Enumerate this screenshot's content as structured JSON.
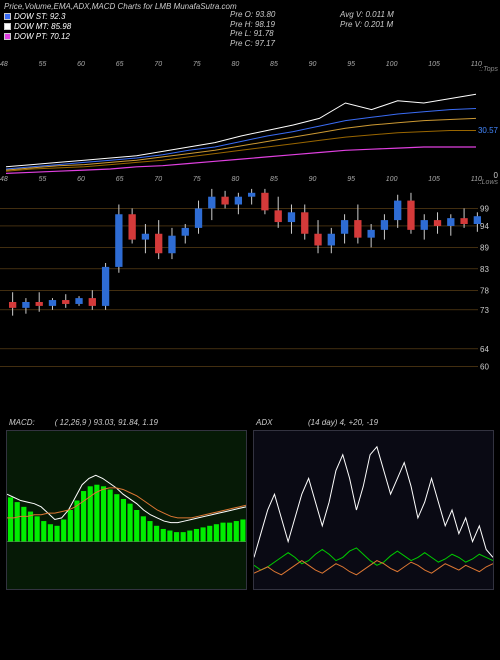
{
  "title": "Price,Volume,EMA,ADX,MACD Charts for LMB MunafaSutra.com",
  "legend": [
    {
      "label": "DOW ST: 92.3",
      "color": "#3a6cf4"
    },
    {
      "label": "DOW MT: 85.98",
      "color": "#ffffff"
    },
    {
      "label": "DOW PT: 70.12",
      "color": "#e040e0"
    }
  ],
  "stats_col1": [
    {
      "k": "Pre",
      "v": "O: 93.80"
    },
    {
      "k": "Pre",
      "v": "H: 98.19"
    },
    {
      "k": "Pre",
      "v": "L: 91.78"
    },
    {
      "k": "Pre",
      "v": "C: 97.17"
    }
  ],
  "stats_col2": [
    {
      "k": "Avg V:",
      "v": "0.011 M"
    },
    {
      "k": "Pre  V:",
      "v": "0.201 M"
    }
  ],
  "panel_top": {
    "bg": "#000000",
    "corner_top": "::Tops",
    "corner_bot": "::Lows",
    "price_label": {
      "text": "30.57",
      "y": 0.55
    },
    "zero_label": {
      "text": "0",
      "y": 0.92
    },
    "xlabels": [
      "48",
      "55",
      "60",
      "65",
      "70",
      "75",
      "80",
      "85",
      "90",
      "95",
      "100",
      "105",
      "110"
    ],
    "lines": [
      {
        "color": "#ffffff",
        "w": 1,
        "pts": [
          0.88,
          0.86,
          0.84,
          0.82,
          0.8,
          0.78,
          0.74,
          0.7,
          0.66,
          0.6,
          0.55,
          0.5,
          0.44,
          0.3,
          0.36,
          0.28,
          0.3,
          0.26,
          0.22
        ]
      },
      {
        "color": "#3a6cf4",
        "w": 1,
        "pts": [
          0.9,
          0.88,
          0.86,
          0.84,
          0.82,
          0.8,
          0.77,
          0.73,
          0.7,
          0.65,
          0.6,
          0.56,
          0.51,
          0.46,
          0.43,
          0.4,
          0.38,
          0.36,
          0.35
        ]
      },
      {
        "color": "#cc9933",
        "w": 1,
        "pts": [
          0.91,
          0.89,
          0.87,
          0.86,
          0.84,
          0.82,
          0.79,
          0.76,
          0.73,
          0.69,
          0.65,
          0.61,
          0.57,
          0.53,
          0.5,
          0.48,
          0.46,
          0.45,
          0.44
        ]
      },
      {
        "color": "#996600",
        "w": 1,
        "pts": [
          0.92,
          0.9,
          0.89,
          0.88,
          0.86,
          0.84,
          0.82,
          0.79,
          0.76,
          0.73,
          0.7,
          0.67,
          0.64,
          0.61,
          0.59,
          0.57,
          0.56,
          0.55,
          0.55
        ]
      },
      {
        "color": "#e040e0",
        "w": 1.2,
        "pts": [
          0.94,
          0.93,
          0.92,
          0.91,
          0.9,
          0.88,
          0.87,
          0.85,
          0.83,
          0.81,
          0.79,
          0.77,
          0.75,
          0.73,
          0.72,
          0.71,
          0.7,
          0.7,
          0.7
        ]
      }
    ]
  },
  "panel_mid": {
    "ylabels": [
      {
        "v": "99",
        "y": 0.12
      },
      {
        "v": "94",
        "y": 0.21
      },
      {
        "v": "89",
        "y": 0.32
      },
      {
        "v": "83",
        "y": 0.43
      },
      {
        "v": "78",
        "y": 0.54
      },
      {
        "v": "73",
        "y": 0.64
      },
      {
        "v": "64",
        "y": 0.84
      },
      {
        "v": "60",
        "y": 0.93
      }
    ],
    "gridcolor": "#6a4a1a",
    "xlabels": [
      "48",
      "55",
      "60",
      "65",
      "70",
      "75",
      "80",
      "85",
      "90",
      "95",
      "100",
      "105",
      "110"
    ],
    "candles": [
      {
        "o": 0.6,
        "h": 0.55,
        "l": 0.67,
        "c": 0.63,
        "up": false
      },
      {
        "o": 0.63,
        "h": 0.58,
        "l": 0.66,
        "c": 0.6,
        "up": true
      },
      {
        "o": 0.6,
        "h": 0.55,
        "l": 0.65,
        "c": 0.62,
        "up": false
      },
      {
        "o": 0.62,
        "h": 0.58,
        "l": 0.64,
        "c": 0.59,
        "up": true
      },
      {
        "o": 0.59,
        "h": 0.56,
        "l": 0.63,
        "c": 0.61,
        "up": false
      },
      {
        "o": 0.61,
        "h": 0.57,
        "l": 0.62,
        "c": 0.58,
        "up": true
      },
      {
        "o": 0.58,
        "h": 0.54,
        "l": 0.64,
        "c": 0.62,
        "up": false
      },
      {
        "o": 0.62,
        "h": 0.4,
        "l": 0.64,
        "c": 0.42,
        "up": true
      },
      {
        "o": 0.42,
        "h": 0.1,
        "l": 0.45,
        "c": 0.15,
        "up": true
      },
      {
        "o": 0.15,
        "h": 0.12,
        "l": 0.3,
        "c": 0.28,
        "up": false
      },
      {
        "o": 0.28,
        "h": 0.2,
        "l": 0.35,
        "c": 0.25,
        "up": true
      },
      {
        "o": 0.25,
        "h": 0.18,
        "l": 0.38,
        "c": 0.35,
        "up": false
      },
      {
        "o": 0.35,
        "h": 0.22,
        "l": 0.38,
        "c": 0.26,
        "up": true
      },
      {
        "o": 0.26,
        "h": 0.2,
        "l": 0.3,
        "c": 0.22,
        "up": true
      },
      {
        "o": 0.22,
        "h": 0.08,
        "l": 0.25,
        "c": 0.12,
        "up": true
      },
      {
        "o": 0.12,
        "h": 0.02,
        "l": 0.18,
        "c": 0.06,
        "up": true
      },
      {
        "o": 0.06,
        "h": 0.03,
        "l": 0.12,
        "c": 0.1,
        "up": false
      },
      {
        "o": 0.1,
        "h": 0.04,
        "l": 0.15,
        "c": 0.06,
        "up": true
      },
      {
        "o": 0.06,
        "h": 0.02,
        "l": 0.1,
        "c": 0.04,
        "up": true
      },
      {
        "o": 0.04,
        "h": 0.02,
        "l": 0.15,
        "c": 0.13,
        "up": false
      },
      {
        "o": 0.13,
        "h": 0.06,
        "l": 0.22,
        "c": 0.19,
        "up": false
      },
      {
        "o": 0.19,
        "h": 0.1,
        "l": 0.25,
        "c": 0.14,
        "up": true
      },
      {
        "o": 0.14,
        "h": 0.1,
        "l": 0.28,
        "c": 0.25,
        "up": false
      },
      {
        "o": 0.25,
        "h": 0.18,
        "l": 0.35,
        "c": 0.31,
        "up": false
      },
      {
        "o": 0.31,
        "h": 0.22,
        "l": 0.35,
        "c": 0.25,
        "up": true
      },
      {
        "o": 0.25,
        "h": 0.15,
        "l": 0.3,
        "c": 0.18,
        "up": true
      },
      {
        "o": 0.18,
        "h": 0.1,
        "l": 0.3,
        "c": 0.27,
        "up": false
      },
      {
        "o": 0.27,
        "h": 0.2,
        "l": 0.32,
        "c": 0.23,
        "up": true
      },
      {
        "o": 0.23,
        "h": 0.15,
        "l": 0.28,
        "c": 0.18,
        "up": true
      },
      {
        "o": 0.18,
        "h": 0.05,
        "l": 0.22,
        "c": 0.08,
        "up": true
      },
      {
        "o": 0.08,
        "h": 0.04,
        "l": 0.25,
        "c": 0.23,
        "up": false
      },
      {
        "o": 0.23,
        "h": 0.15,
        "l": 0.28,
        "c": 0.18,
        "up": true
      },
      {
        "o": 0.18,
        "h": 0.14,
        "l": 0.25,
        "c": 0.21,
        "up": false
      },
      {
        "o": 0.21,
        "h": 0.15,
        "l": 0.26,
        "c": 0.17,
        "up": true
      },
      {
        "o": 0.17,
        "h": 0.12,
        "l": 0.22,
        "c": 0.2,
        "up": false
      },
      {
        "o": 0.2,
        "h": 0.14,
        "l": 0.24,
        "c": 0.16,
        "up": true
      }
    ],
    "up_color": "#2e6cd4",
    "down_color": "#d43a3a",
    "wick_color": "#cccccc"
  },
  "macd": {
    "title": "MACD:",
    "params": "( 12,26,9 ) 93.03,  91.84,   1.19",
    "bg": "#061a06",
    "hist_color": "#00ee00",
    "line1_color": "#ffffff",
    "line2_color": "#dd7733",
    "hist": [
      0.28,
      0.25,
      0.22,
      0.19,
      0.16,
      0.13,
      0.11,
      0.1,
      0.14,
      0.2,
      0.26,
      0.32,
      0.35,
      0.36,
      0.35,
      0.33,
      0.3,
      0.27,
      0.24,
      0.2,
      0.16,
      0.13,
      0.1,
      0.08,
      0.07,
      0.06,
      0.06,
      0.07,
      0.08,
      0.09,
      0.1,
      0.11,
      0.12,
      0.12,
      0.13,
      0.14
    ],
    "line1": [
      0.4,
      0.42,
      0.44,
      0.45,
      0.46,
      0.48,
      0.52,
      0.56,
      0.55,
      0.5,
      0.42,
      0.34,
      0.3,
      0.28,
      0.3,
      0.33,
      0.36,
      0.4,
      0.43,
      0.46,
      0.5,
      0.53,
      0.55,
      0.57,
      0.58,
      0.58,
      0.57,
      0.56,
      0.55,
      0.54,
      0.53,
      0.52,
      0.51,
      0.5,
      0.49,
      0.48
    ],
    "line2": [
      0.55,
      0.55,
      0.54,
      0.54,
      0.53,
      0.53,
      0.52,
      0.52,
      0.51,
      0.5,
      0.48,
      0.45,
      0.42,
      0.39,
      0.37,
      0.36,
      0.36,
      0.37,
      0.39,
      0.41,
      0.44,
      0.47,
      0.5,
      0.52,
      0.54,
      0.55,
      0.55,
      0.55,
      0.54,
      0.53,
      0.52,
      0.51,
      0.5,
      0.49,
      0.48,
      0.47
    ]
  },
  "adx": {
    "title": "ADX",
    "params": "(14   day) 4,   +20,  -19",
    "bg": "#0a0a14",
    "adx_color": "#ffffff",
    "plus_color": "#00cc00",
    "minus_color": "#dd7733",
    "adx_line": [
      0.8,
      0.65,
      0.5,
      0.4,
      0.55,
      0.7,
      0.55,
      0.4,
      0.3,
      0.45,
      0.6,
      0.45,
      0.25,
      0.15,
      0.3,
      0.5,
      0.35,
      0.15,
      0.1,
      0.25,
      0.4,
      0.3,
      0.2,
      0.35,
      0.55,
      0.45,
      0.3,
      0.45,
      0.6,
      0.5,
      0.65,
      0.55,
      0.7,
      0.6,
      0.75,
      0.8
    ],
    "plus_line": [
      0.85,
      0.88,
      0.86,
      0.83,
      0.8,
      0.77,
      0.8,
      0.84,
      0.82,
      0.78,
      0.75,
      0.78,
      0.82,
      0.8,
      0.76,
      0.74,
      0.78,
      0.82,
      0.85,
      0.83,
      0.79,
      0.76,
      0.79,
      0.82,
      0.8,
      0.77,
      0.8,
      0.83,
      0.81,
      0.78,
      0.8,
      0.83,
      0.81,
      0.78,
      0.8,
      0.82
    ],
    "minus_line": [
      0.9,
      0.88,
      0.86,
      0.89,
      0.91,
      0.88,
      0.85,
      0.82,
      0.85,
      0.88,
      0.9,
      0.87,
      0.84,
      0.86,
      0.89,
      0.91,
      0.88,
      0.85,
      0.82,
      0.84,
      0.87,
      0.89,
      0.86,
      0.83,
      0.85,
      0.88,
      0.9,
      0.87,
      0.84,
      0.86,
      0.88,
      0.85,
      0.87,
      0.89,
      0.86,
      0.84
    ]
  }
}
